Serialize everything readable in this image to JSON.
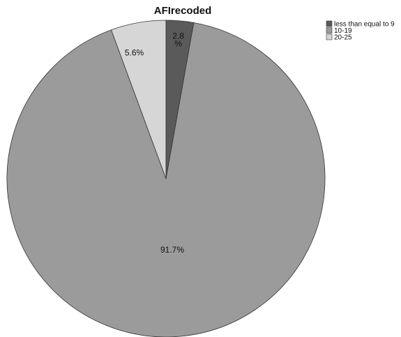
{
  "chart_data": {
    "type": "pie",
    "title": "AFIrecoded",
    "categories": [
      "less than equal to 9",
      "10-19",
      "20-25"
    ],
    "values": [
      2.8,
      91.7,
      5.6
    ],
    "labels": [
      [
        "2.8",
        "%"
      ],
      [
        "91.7%"
      ],
      [
        "5.6%"
      ]
    ],
    "colors": [
      "#5a5a5a",
      "#9b9b9b",
      "#d6d6d6"
    ],
    "legend": {
      "position": "top-right",
      "entries": [
        "less than equal to 9",
        "10-19",
        "20-25"
      ]
    },
    "start_angle": "12 o'clock",
    "direction": "clockwise"
  }
}
